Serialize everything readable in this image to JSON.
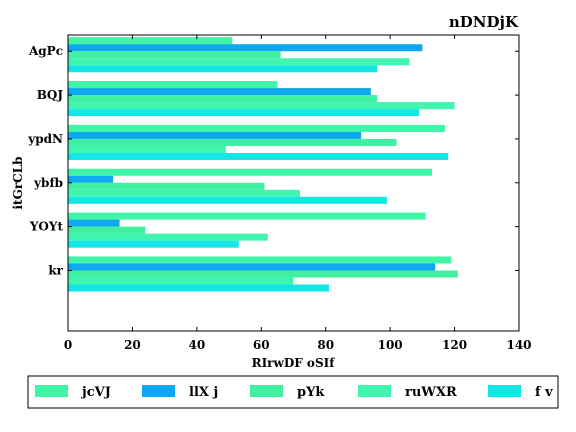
{
  "chart_data": {
    "type": "bar",
    "orientation": "horizontal",
    "title": "nDNDjK",
    "xlabel": "RIrwDF oSIf",
    "ylabel": "itGrCLb",
    "xlim": [
      0,
      140
    ],
    "xticks": [
      0,
      20,
      40,
      60,
      80,
      100,
      120,
      140
    ],
    "grid": false,
    "legend_position": "bottom",
    "categories": [
      "AgPc",
      "BQJ",
      "ypdN",
      "ybfb",
      "YOYt",
      "kr"
    ],
    "series": [
      {
        "name": "jcVJ",
        "color": "#40f5a5",
        "values": [
          51,
          65,
          117,
          113,
          111,
          119
        ]
      },
      {
        "name": "llX j",
        "color": "#0ea8f0",
        "values": [
          110,
          94,
          91,
          14,
          16,
          114
        ]
      },
      {
        "name": "pYk",
        "color": "#40f0a0",
        "values": [
          66,
          96,
          102,
          61,
          24,
          121
        ]
      },
      {
        "name": "ruWXR",
        "color": "#40f5b0",
        "values": [
          106,
          120,
          49,
          72,
          62,
          70
        ]
      },
      {
        "name": "f v",
        "color": "#14e6e6",
        "values": [
          96,
          109,
          118,
          99,
          53,
          81
        ]
      }
    ]
  }
}
